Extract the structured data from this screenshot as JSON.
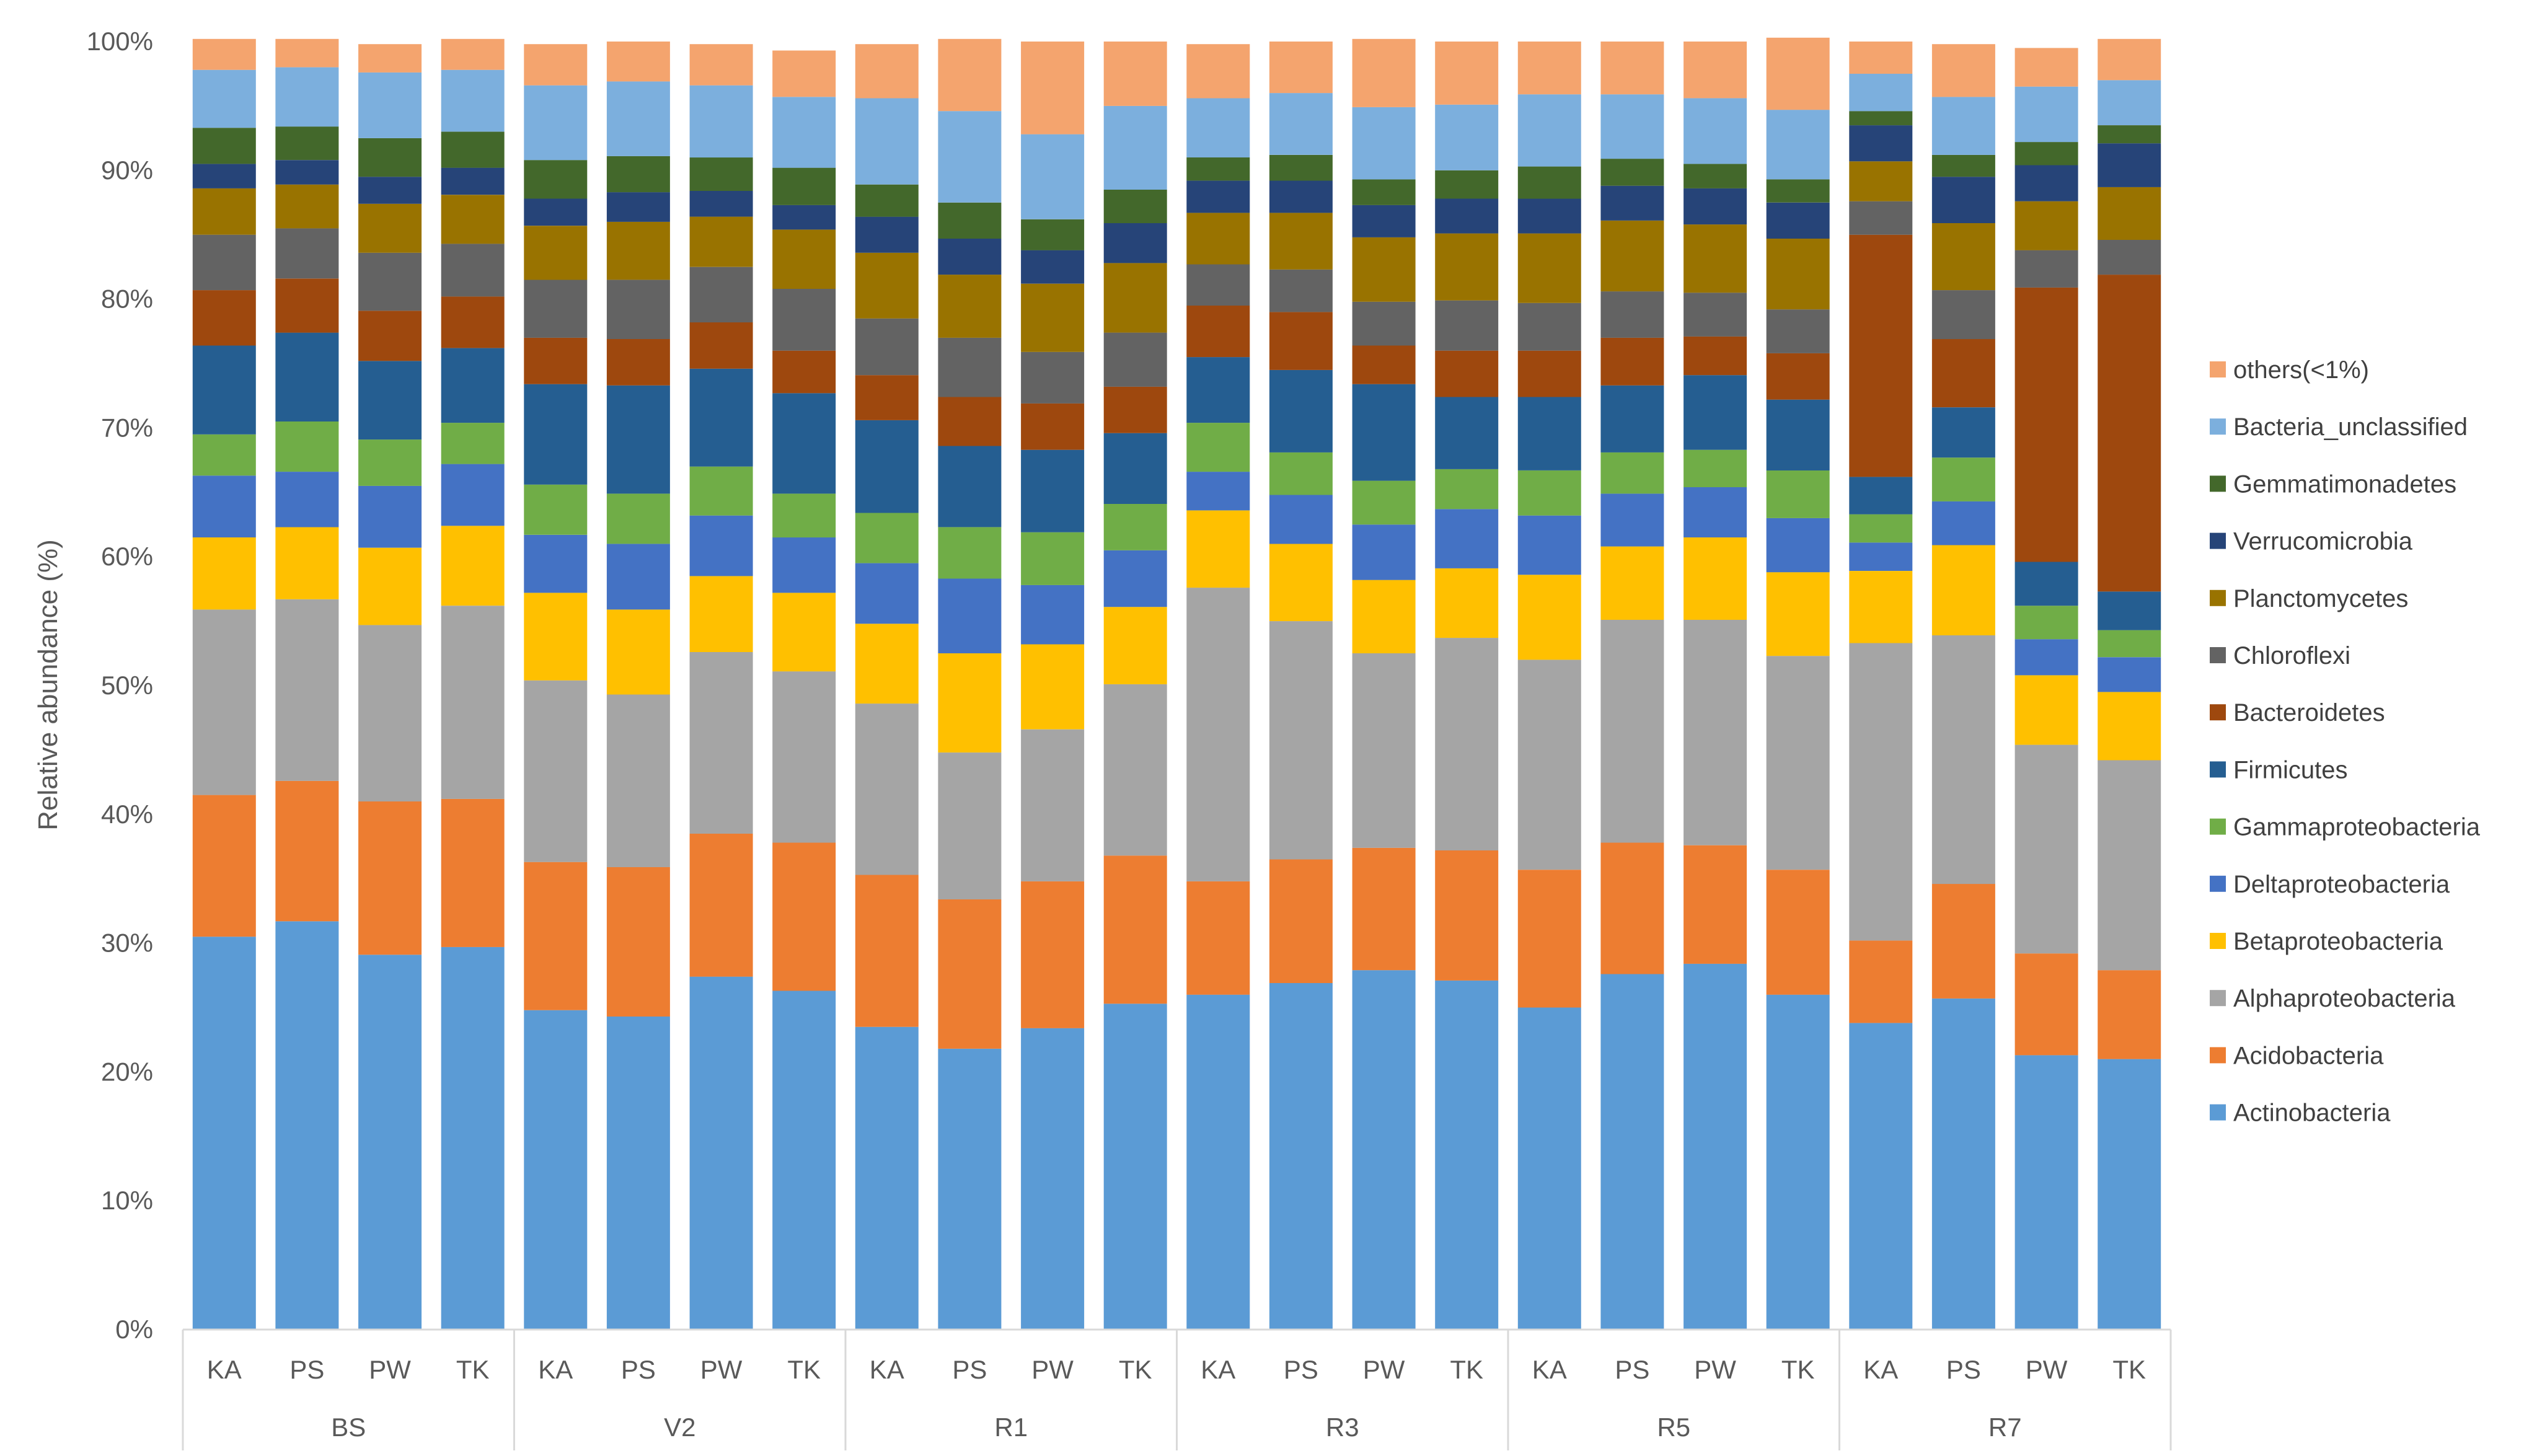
{
  "chart_data": {
    "type": "stacked-bar-100",
    "title": "",
    "xlabel": "",
    "ylabel": "Relative abundance (%)",
    "ylim": [
      0,
      100
    ],
    "yticks": [
      "0%",
      "10%",
      "20%",
      "30%",
      "40%",
      "50%",
      "60%",
      "70%",
      "80%",
      "90%",
      "100%"
    ],
    "groups": [
      "BS",
      "V2",
      "R1",
      "R3",
      "R5",
      "R7"
    ],
    "group_size": 4,
    "categories": [
      "KA",
      "PS",
      "PW",
      "TK",
      "KA",
      "PS",
      "PW",
      "TK",
      "KA",
      "PS",
      "PW",
      "TK",
      "KA",
      "PS",
      "PW",
      "TK",
      "KA",
      "PS",
      "PW",
      "TK",
      "KA",
      "PS",
      "PW",
      "TK"
    ],
    "series": [
      {
        "name": "Actinobacteria",
        "color": "#5B9BD5",
        "values": [
          30.5,
          31.7,
          29.1,
          29.7,
          24.8,
          24.3,
          27.4,
          26.3,
          23.5,
          21.8,
          23.4,
          25.3,
          26.0,
          26.9,
          27.9,
          27.1,
          25.0,
          27.6,
          28.4,
          26.0,
          23.8,
          25.7,
          21.3,
          21.0
        ]
      },
      {
        "name": "Acidobacteria",
        "color": "#ED7D31",
        "values": [
          11.0,
          10.9,
          11.9,
          11.5,
          11.5,
          11.6,
          11.1,
          11.5,
          11.8,
          11.6,
          11.4,
          11.5,
          8.8,
          9.6,
          9.5,
          10.1,
          10.7,
          10.2,
          9.2,
          9.7,
          6.4,
          8.9,
          7.9,
          6.9
        ]
      },
      {
        "name": "Alphaproteobacteria",
        "color": "#A5A5A5",
        "values": [
          14.4,
          14.1,
          13.7,
          15.0,
          14.1,
          13.4,
          14.1,
          13.3,
          13.3,
          11.4,
          11.8,
          13.3,
          22.8,
          18.5,
          15.1,
          16.5,
          16.3,
          17.3,
          17.5,
          16.6,
          23.1,
          19.3,
          16.2,
          16.3
        ]
      },
      {
        "name": "Betaproteobacteria",
        "color": "#FFC000",
        "values": [
          5.6,
          5.6,
          6.0,
          6.2,
          6.8,
          6.6,
          5.9,
          6.1,
          6.2,
          7.7,
          6.6,
          6.0,
          6.0,
          6.0,
          5.7,
          5.4,
          6.6,
          5.7,
          6.4,
          6.5,
          5.6,
          7.0,
          5.4,
          5.3
        ]
      },
      {
        "name": "Deltaproteobacteria",
        "color": "#4472C4",
        "values": [
          4.8,
          4.3,
          4.8,
          4.8,
          4.5,
          5.1,
          4.7,
          4.3,
          4.7,
          5.8,
          4.6,
          4.4,
          3.0,
          3.8,
          4.3,
          4.6,
          4.6,
          4.1,
          3.9,
          4.2,
          2.2,
          3.4,
          2.8,
          2.7
        ]
      },
      {
        "name": "Gammaproteobacteria",
        "color": "#70AD47",
        "values": [
          3.2,
          3.9,
          3.6,
          3.2,
          3.9,
          3.9,
          3.8,
          3.4,
          3.9,
          4.0,
          4.1,
          3.6,
          3.8,
          3.3,
          3.4,
          3.1,
          3.5,
          3.2,
          2.9,
          3.7,
          2.2,
          3.4,
          2.6,
          2.1
        ]
      },
      {
        "name": "Firmicutes",
        "color": "#255E91",
        "values": [
          6.9,
          6.9,
          6.1,
          5.8,
          7.8,
          8.4,
          7.6,
          7.8,
          7.2,
          6.3,
          6.4,
          5.5,
          5.1,
          6.4,
          7.5,
          5.6,
          5.7,
          5.2,
          5.8,
          5.5,
          2.9,
          3.9,
          3.4,
          3.0
        ]
      },
      {
        "name": "Bacteroidetes",
        "color": "#9E480E",
        "values": [
          4.3,
          4.2,
          3.9,
          4.0,
          3.6,
          3.6,
          3.6,
          3.3,
          3.5,
          3.8,
          3.6,
          3.6,
          4.0,
          4.5,
          3.0,
          3.6,
          3.6,
          3.7,
          3.0,
          3.6,
          18.8,
          5.3,
          21.3,
          24.6
        ]
      },
      {
        "name": "Chloroflexi",
        "color": "#636363",
        "values": [
          4.3,
          3.9,
          4.5,
          4.1,
          4.5,
          4.6,
          4.3,
          4.8,
          4.4,
          4.6,
          4.0,
          4.2,
          3.2,
          3.3,
          3.4,
          3.9,
          3.7,
          3.6,
          3.4,
          3.4,
          2.6,
          3.8,
          2.9,
          2.7
        ]
      },
      {
        "name": "Planctomycetes",
        "color": "#997300",
        "values": [
          3.6,
          3.4,
          3.8,
          3.8,
          4.2,
          4.5,
          3.9,
          4.6,
          5.1,
          4.9,
          5.3,
          5.4,
          4.0,
          4.4,
          5.0,
          5.2,
          5.4,
          5.5,
          5.3,
          5.5,
          3.1,
          5.2,
          3.8,
          4.1
        ]
      },
      {
        "name": "Verrucomicrobia",
        "color": "#264478",
        "values": [
          1.9,
          1.9,
          2.1,
          2.1,
          2.1,
          2.3,
          2.0,
          1.9,
          2.8,
          2.8,
          2.6,
          3.1,
          2.5,
          2.5,
          2.5,
          2.7,
          2.7,
          2.7,
          2.8,
          2.8,
          2.8,
          3.6,
          2.8,
          3.4
        ]
      },
      {
        "name": "Gemmatimonadetes",
        "color": "#43682B",
        "values": [
          2.8,
          2.6,
          3.0,
          2.8,
          3.0,
          2.8,
          2.6,
          2.9,
          2.5,
          2.8,
          2.4,
          2.6,
          1.8,
          2.0,
          2.0,
          2.2,
          2.5,
          2.1,
          1.9,
          1.8,
          1.1,
          1.7,
          1.8,
          1.4
        ]
      },
      {
        "name": "Bacteria_unclassified",
        "color": "#7CAFDD",
        "values": [
          4.5,
          4.6,
          5.1,
          4.8,
          5.8,
          5.8,
          5.6,
          5.5,
          6.7,
          7.1,
          6.6,
          6.5,
          4.6,
          4.8,
          5.6,
          5.1,
          5.6,
          5.0,
          5.1,
          5.4,
          2.9,
          4.5,
          4.3,
          3.5
        ]
      },
      {
        "name": "others(<1%)",
        "color": "#F4A46E",
        "values": [
          2.4,
          2.2,
          2.2,
          2.4,
          3.2,
          3.1,
          3.2,
          3.6,
          4.2,
          5.6,
          7.2,
          5.0,
          4.2,
          4.0,
          5.3,
          4.9,
          4.1,
          4.1,
          4.4,
          5.6,
          2.5,
          4.1,
          3.0,
          3.2
        ]
      }
    ],
    "legend_position": "right",
    "legend_order": [
      "others(<1%)",
      "Bacteria_unclassified",
      "Gemmatimonadetes",
      "Verrucomicrobia",
      "Planctomycetes",
      "Chloroflexi",
      "Bacteroidetes",
      "Firmicutes",
      "Gammaproteobacteria",
      "Deltaproteobacteria",
      "Betaproteobacteria",
      "Alphaproteobacteria",
      "Acidobacteria",
      "Actinobacteria"
    ],
    "grid": false
  }
}
